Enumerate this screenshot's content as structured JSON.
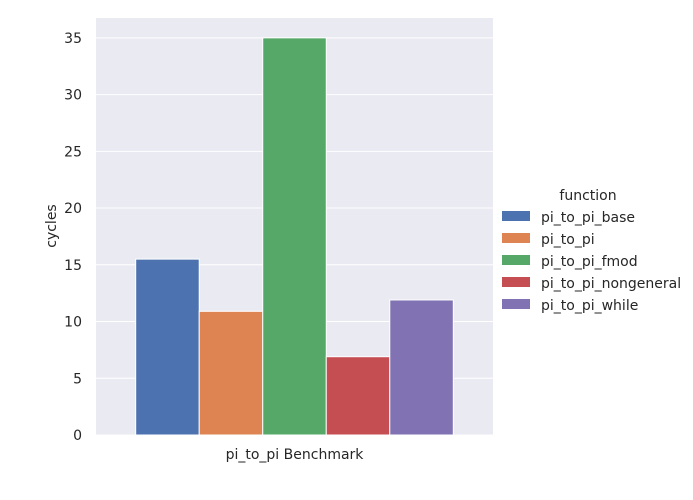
{
  "chart_data": {
    "type": "bar",
    "categories": [
      "pi_to_pi Benchmark"
    ],
    "series": [
      {
        "name": "pi_to_pi_base",
        "values": [
          15.5
        ],
        "color": "#4c72b0"
      },
      {
        "name": "pi_to_pi",
        "values": [
          10.9
        ],
        "color": "#dd8452"
      },
      {
        "name": "pi_to_pi_fmod",
        "values": [
          35.0
        ],
        "color": "#55a868"
      },
      {
        "name": "pi_to_pi_nongeneral",
        "values": [
          6.9
        ],
        "color": "#c44e52"
      },
      {
        "name": "pi_to_pi_while",
        "values": [
          11.9
        ],
        "color": "#8172b3"
      }
    ],
    "title": "",
    "xlabel": "",
    "ylabel": "cycles",
    "ylim": [
      0,
      36.75
    ],
    "yticks": [
      0,
      5,
      10,
      15,
      20,
      25,
      30,
      35
    ],
    "grid": true,
    "legend": {
      "title": "function",
      "placement": "right"
    },
    "background": "#eaeaf2"
  }
}
